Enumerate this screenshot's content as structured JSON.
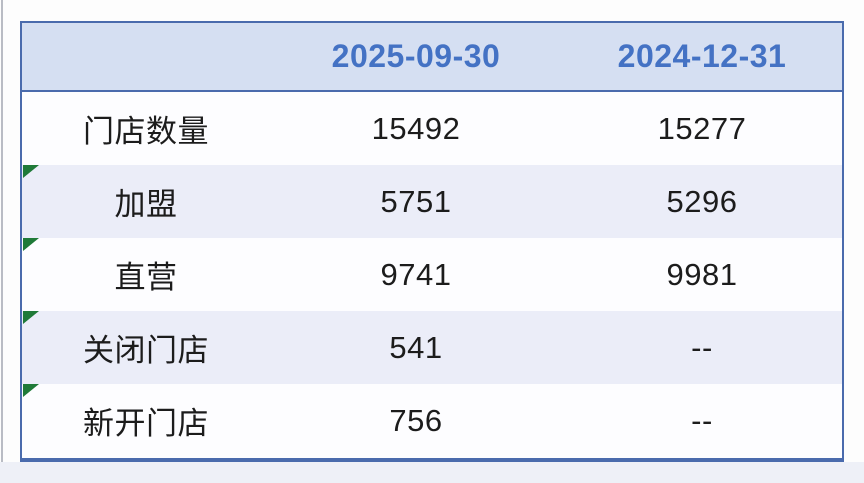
{
  "table": {
    "columns": [
      "",
      "2025-09-30",
      "2024-12-31"
    ],
    "rows": [
      {
        "label": "门店数量",
        "v2025": "15492",
        "v2024": "15277",
        "has_note_marker": false
      },
      {
        "label": "加盟",
        "v2025": "5751",
        "v2024": "5296",
        "has_note_marker": true
      },
      {
        "label": "直营",
        "v2025": "9741",
        "v2024": "9981",
        "has_note_marker": true
      },
      {
        "label": "关闭门店",
        "v2025": "541",
        "v2024": "--",
        "has_note_marker": true
      },
      {
        "label": "新开门店",
        "v2025": "756",
        "v2024": "--",
        "has_note_marker": true
      }
    ]
  },
  "colors": {
    "header_background": "#d5dff2",
    "header_text": "#4472c4",
    "table_border": "#4a6bad",
    "stripe_row_background": "#ebedf8",
    "plain_row_background": "#fdfdff",
    "body_text": "#1c1c1c",
    "note_marker_green": "#1f7a38",
    "below_table_band": "#eef0f7"
  }
}
